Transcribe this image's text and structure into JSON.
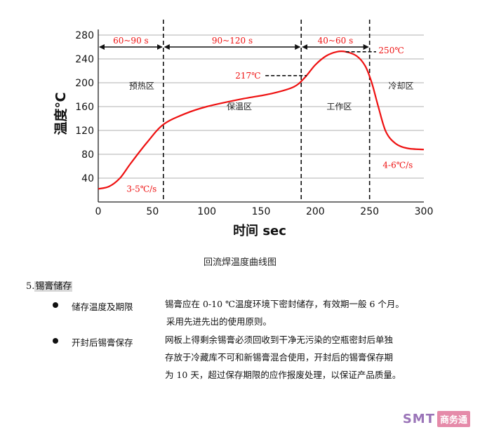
{
  "chart_data": {
    "type": "line",
    "xlabel": "时间 sec",
    "ylabel": "温度℃",
    "xlim": [
      0,
      300
    ],
    "ylim": [
      0,
      280
    ],
    "x_ticks": [
      0,
      50,
      100,
      150,
      200,
      250,
      300
    ],
    "y_ticks": [
      40,
      80,
      120,
      160,
      200,
      240,
      280
    ],
    "grid": "horizontal",
    "vlines": [
      60,
      187,
      250
    ],
    "series": [
      {
        "color": "#ee1111",
        "points": [
          [
            0,
            22
          ],
          [
            10,
            26
          ],
          [
            20,
            40
          ],
          [
            30,
            65
          ],
          [
            45,
            100
          ],
          [
            60,
            130
          ],
          [
            80,
            148
          ],
          [
            100,
            160
          ],
          [
            130,
            172
          ],
          [
            160,
            182
          ],
          [
            180,
            193
          ],
          [
            190,
            208
          ],
          [
            200,
            230
          ],
          [
            210,
            245
          ],
          [
            220,
            252
          ],
          [
            228,
            252
          ],
          [
            238,
            245
          ],
          [
            246,
            228
          ],
          [
            252,
            200
          ],
          [
            258,
            160
          ],
          [
            265,
            118
          ],
          [
            274,
            98
          ],
          [
            285,
            90
          ],
          [
            300,
            88
          ]
        ]
      }
    ],
    "phases": [
      {
        "label": "预热区",
        "x": 40,
        "y": 195
      },
      {
        "label": "保温区",
        "x": 130,
        "y": 160
      },
      {
        "label": "工作区",
        "x": 222,
        "y": 160
      },
      {
        "label": "冷却区",
        "x": 279,
        "y": 195
      }
    ],
    "duration_arrows": [
      {
        "label": "60~90 s",
        "from": 0,
        "to": 60
      },
      {
        "label": "90~120 s",
        "from": 60,
        "to": 187
      },
      {
        "label": "40~60 s",
        "from": 187,
        "to": 250
      }
    ],
    "annotations": [
      {
        "text": "250℃",
        "x": 270,
        "y": 254,
        "line_from": 228,
        "line_to": 256,
        "line_y": 252
      },
      {
        "text": "217℃",
        "x": 138,
        "y": 212,
        "line_from": 154,
        "line_to": 192,
        "line_y": 212
      },
      {
        "text": "3-5℃/s",
        "x": 40,
        "y": 22
      },
      {
        "text": "4-6℃/s",
        "x": 276,
        "y": 62
      }
    ]
  },
  "caption": "回流焊温度曲线图",
  "section": {
    "number": "5.",
    "title": "锡膏储存"
  },
  "items": [
    {
      "label": "储存温度及期限",
      "lines": [
        "锡膏应在 0-10 ℃温度环境下密封储存，有效期一般 6 个月。",
        " 采用先进先出的使用原则。"
      ]
    },
    {
      "label": "开封后锡膏保存",
      "lines": [
        "网板上得剩余锡膏必须回收到干净无污染的空瓶密封后单独",
        "存放于冷藏库不可和新锡膏混合使用，开封后的锡膏保存期",
        "为 10 天，超过保存期限的应作报废处理，以保证产品质量。"
      ]
    }
  ],
  "logo": {
    "text": "SMT",
    "cn": "商务通"
  }
}
